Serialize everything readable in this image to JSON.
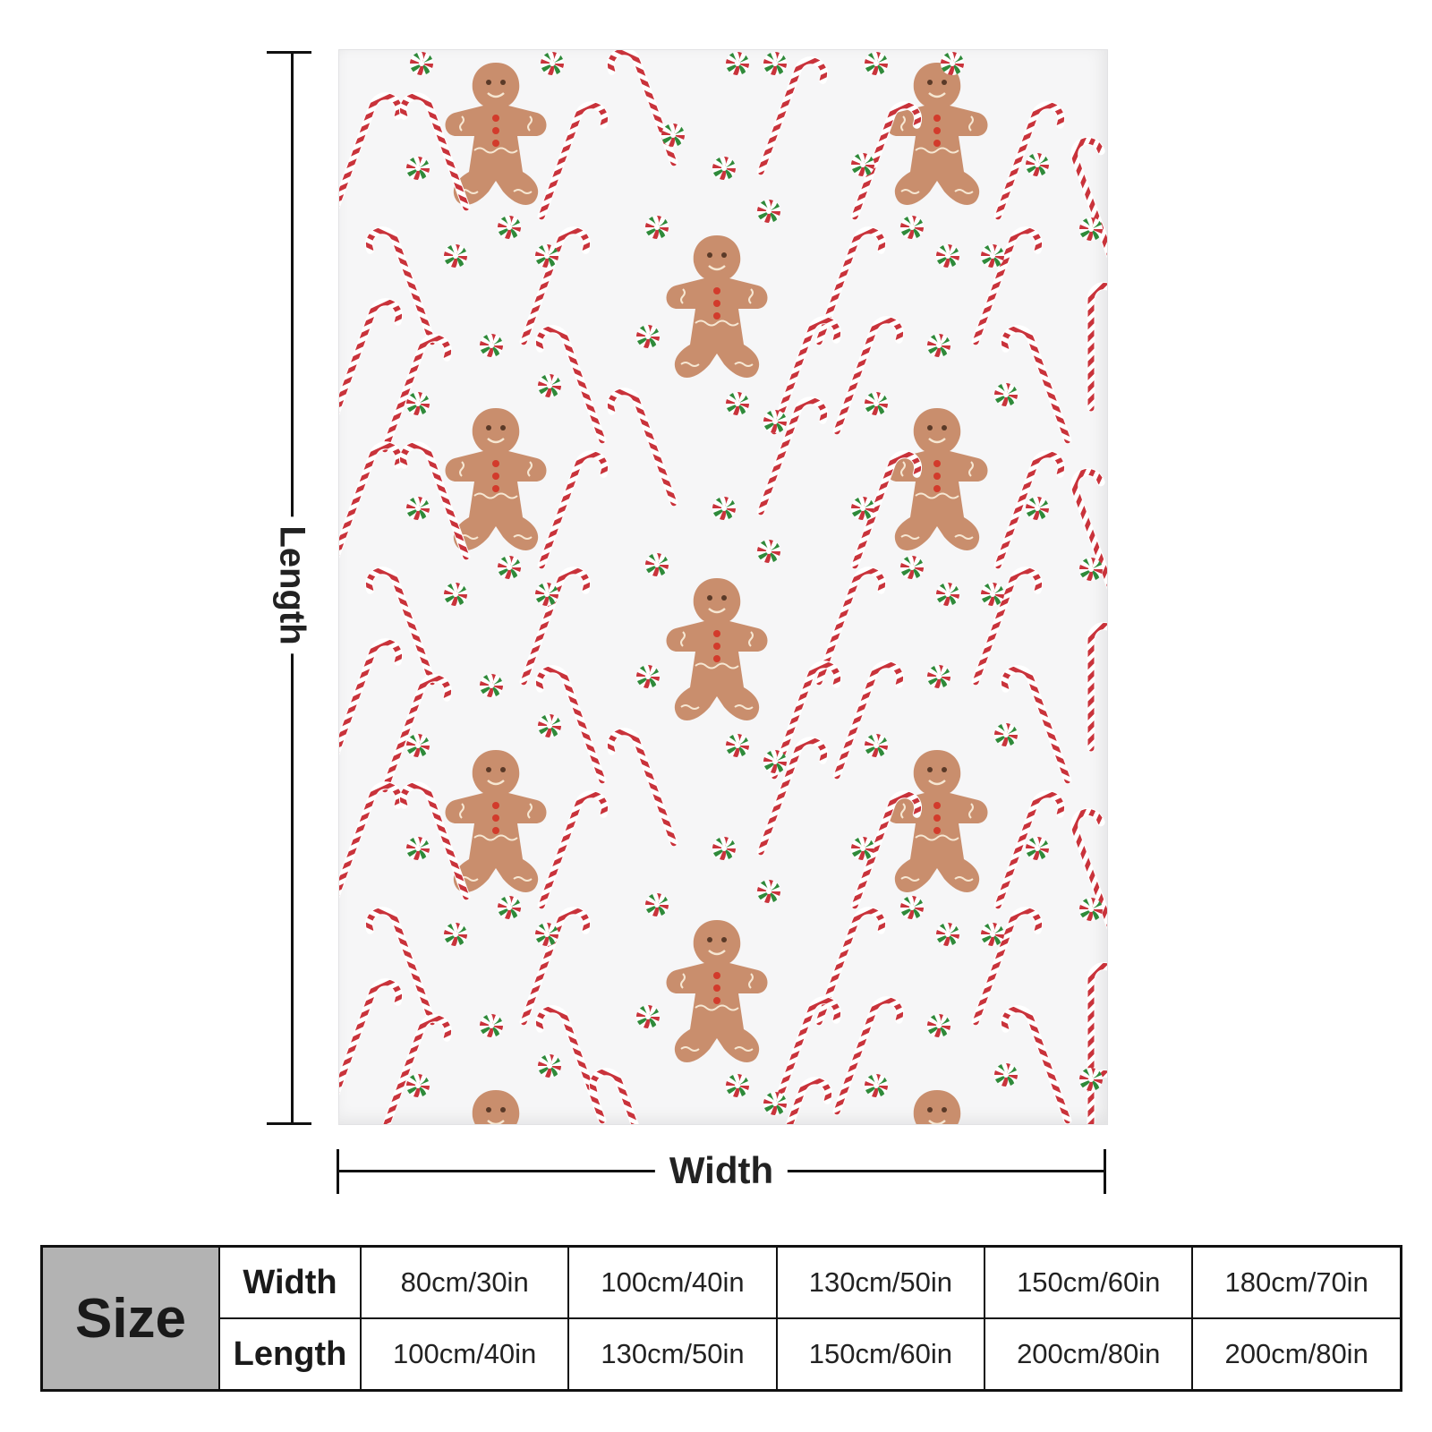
{
  "product": {
    "pattern_motifs": [
      "gingerbread-man",
      "candy-cane",
      "peppermint-candy"
    ],
    "colors": {
      "background": "#f6f6f7",
      "gingerbread": "#c98e6d",
      "icing": "#f6e7d2",
      "button": "#d23b2c",
      "cane_red": "#c9333b",
      "mint_green": "#2f8a3a"
    }
  },
  "dimensions": {
    "length_label": "Length",
    "width_label": "Width"
  },
  "size_table": {
    "header": "Size",
    "rows": [
      {
        "label": "Width",
        "values": [
          "80cm/30in",
          "100cm/40in",
          "130cm/50in",
          "150cm/60in",
          "180cm/70in"
        ]
      },
      {
        "label": "Length",
        "values": [
          "100cm/40in",
          "130cm/50in",
          "150cm/60in",
          "200cm/80in",
          "200cm/80in"
        ]
      }
    ]
  }
}
